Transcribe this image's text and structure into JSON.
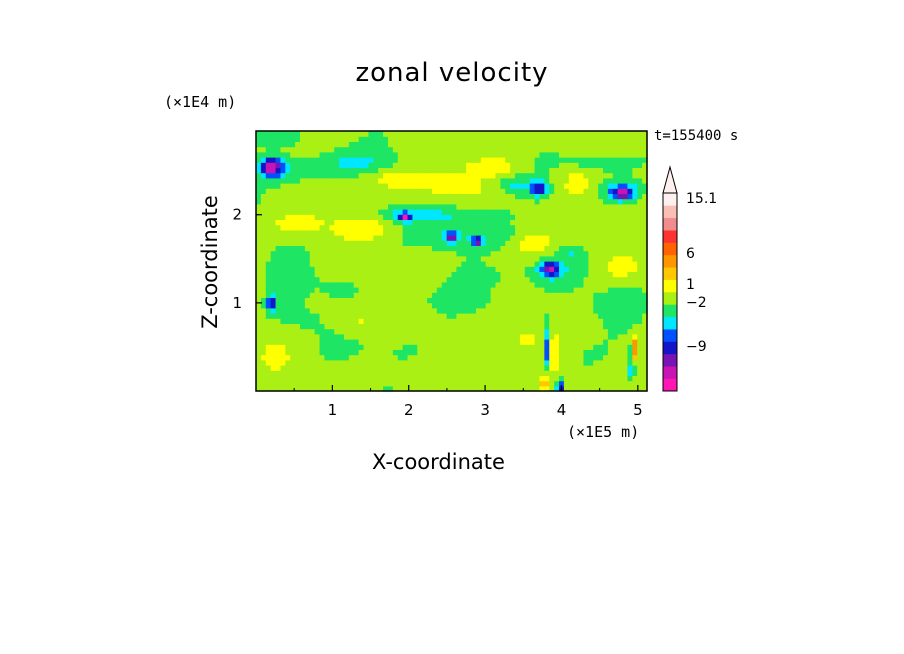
{
  "chart_data": {
    "type": "heatmap",
    "title": "zonal velocity",
    "xlabel": "X-coordinate",
    "ylabel": "Z-coordinate",
    "x_multiplier": "(×1E5 m)",
    "y_multiplier": "(×1E4 m)",
    "time_label": "t=155400 s",
    "xlim": [
      0,
      5.12
    ],
    "ylim": [
      0,
      2.95
    ],
    "x_ticks": [
      "1",
      "2",
      "3",
      "4",
      "5"
    ],
    "y_ticks": [
      "1",
      "2"
    ],
    "colorbar": {
      "labels": [
        "15.1",
        "6",
        "1",
        "−2",
        "−9"
      ],
      "colors": [
        "#ff14b4",
        "#c814b4",
        "#7814b4",
        "#1414c8",
        "#0050ff",
        "#00e6ff",
        "#1ee664",
        "#aaf014",
        "#ffff00",
        "#ffc800",
        "#ff9600",
        "#ff6400",
        "#ff3232",
        "#f08c8c",
        "#fabeb4",
        "#fff0f0"
      ],
      "cmin": -15,
      "cmax": 19
    },
    "blobs": [
      {
        "x": 0.2,
        "y": 2.9,
        "sx": 0.35,
        "sy": 0.12,
        "v": -3
      },
      {
        "x": 0.2,
        "y": 2.55,
        "sx": 0.13,
        "sy": 0.1,
        "v": -12
      },
      {
        "x": 0.45,
        "y": 2.5,
        "sx": 0.45,
        "sy": 0.14,
        "v": -3
      },
      {
        "x": 1.25,
        "y": 2.6,
        "sx": 0.5,
        "sy": 0.15,
        "v": -3
      },
      {
        "x": 1.65,
        "y": 2.43,
        "sx": 0.3,
        "sy": 0.1,
        "v": 2
      },
      {
        "x": 2.3,
        "y": 2.35,
        "sx": 0.55,
        "sy": 0.15,
        "v": 2.5
      },
      {
        "x": 3.1,
        "y": 2.55,
        "sx": 0.35,
        "sy": 0.1,
        "v": 2.5
      },
      {
        "x": 3.4,
        "y": 2.35,
        "sx": 0.25,
        "sy": 0.1,
        "v": -3
      },
      {
        "x": 3.7,
        "y": 2.3,
        "sx": 0.1,
        "sy": 0.08,
        "v": -9
      },
      {
        "x": 4.2,
        "y": 2.35,
        "sx": 0.2,
        "sy": 0.15,
        "v": 2.5
      },
      {
        "x": 4.8,
        "y": 2.3,
        "sx": 0.3,
        "sy": 0.13,
        "v": -3
      },
      {
        "x": 4.8,
        "y": 2.25,
        "sx": 0.15,
        "sy": 0.08,
        "v": -10
      },
      {
        "x": 4.55,
        "y": 2.6,
        "sx": 0.4,
        "sy": 0.1,
        "v": -3
      },
      {
        "x": 2.6,
        "y": 2.0,
        "sx": 0.6,
        "sy": 0.1,
        "v": -3
      },
      {
        "x": 1.9,
        "y": 2.0,
        "sx": 0.3,
        "sy": 0.08,
        "v": -3
      },
      {
        "x": 1.95,
        "y": 1.98,
        "sx": 0.06,
        "sy": 0.05,
        "v": -10
      },
      {
        "x": 0.55,
        "y": 1.9,
        "sx": 0.4,
        "sy": 0.12,
        "v": 2.5
      },
      {
        "x": 1.4,
        "y": 1.85,
        "sx": 0.35,
        "sy": 0.12,
        "v": 2.5
      },
      {
        "x": 2.9,
        "y": 1.75,
        "sx": 0.6,
        "sy": 0.15,
        "v": -3
      },
      {
        "x": 2.55,
        "y": 1.75,
        "sx": 0.08,
        "sy": 0.06,
        "v": -10
      },
      {
        "x": 2.9,
        "y": 1.7,
        "sx": 0.06,
        "sy": 0.05,
        "v": -10
      },
      {
        "x": 3.6,
        "y": 1.68,
        "sx": 0.3,
        "sy": 0.12,
        "v": 2.5
      },
      {
        "x": 4.3,
        "y": 1.7,
        "sx": 0.35,
        "sy": 0.12,
        "v": 2.5
      },
      {
        "x": 4.15,
        "y": 1.6,
        "sx": 0.2,
        "sy": 0.1,
        "v": -3
      },
      {
        "x": 3.85,
        "y": 1.35,
        "sx": 0.35,
        "sy": 0.15,
        "v": -3
      },
      {
        "x": 3.85,
        "y": 1.4,
        "sx": 0.12,
        "sy": 0.08,
        "v": -10
      },
      {
        "x": 4.8,
        "y": 1.4,
        "sx": 0.3,
        "sy": 0.15,
        "v": 2.5
      },
      {
        "x": 0.3,
        "y": 1.3,
        "sx": 0.3,
        "sy": 0.35,
        "v": -1
      },
      {
        "x": 0.55,
        "y": 0.8,
        "sx": 0.4,
        "sy": 0.2,
        "v": -1
      },
      {
        "x": 1.1,
        "y": 1.2,
        "sx": 0.4,
        "sy": 0.2,
        "v": -1
      },
      {
        "x": 2.6,
        "y": 1.05,
        "sx": 0.7,
        "sy": 0.15,
        "v": -1
      },
      {
        "x": 3.1,
        "y": 1.3,
        "sx": 0.4,
        "sy": 0.15,
        "v": -1
      },
      {
        "x": 4.4,
        "y": 1.0,
        "sx": 0.6,
        "sy": 0.25,
        "v": -1
      },
      {
        "x": 1.8,
        "y": 0.5,
        "sx": 0.6,
        "sy": 0.2,
        "v": -1
      },
      {
        "x": 2.6,
        "y": 0.25,
        "sx": 0.4,
        "sy": 0.25,
        "v": -1
      },
      {
        "x": 4.3,
        "y": 0.4,
        "sx": 0.4,
        "sy": 0.25,
        "v": -1
      },
      {
        "x": 3.5,
        "y": 0.6,
        "sx": 0.3,
        "sy": 0.25,
        "v": 2
      },
      {
        "x": 3.2,
        "y": 0.3,
        "sx": 0.25,
        "sy": 0.2,
        "v": 2
      },
      {
        "x": 1.3,
        "y": 0.8,
        "sx": 0.3,
        "sy": 0.15,
        "v": 2
      },
      {
        "x": 0.25,
        "y": 0.4,
        "sx": 0.15,
        "sy": 0.12,
        "v": 2.5
      },
      {
        "x": 0.2,
        "y": 1.0,
        "sx": 0.06,
        "sy": 0.08,
        "v": -10
      },
      {
        "x": 3.82,
        "y": 0.5,
        "sx": 0.04,
        "sy": 0.25,
        "v": -8
      },
      {
        "x": 3.9,
        "y": 0.4,
        "sx": 0.03,
        "sy": 0.2,
        "v": 10
      },
      {
        "x": 3.78,
        "y": 0.1,
        "sx": 0.04,
        "sy": 0.08,
        "v": 10
      },
      {
        "x": 3.98,
        "y": 0.05,
        "sx": 0.04,
        "sy": 0.06,
        "v": -10
      },
      {
        "x": 4.88,
        "y": 0.3,
        "sx": 0.03,
        "sy": 0.2,
        "v": -3
      },
      {
        "x": 4.95,
        "y": 0.5,
        "sx": 0.03,
        "sy": 0.15,
        "v": 8
      },
      {
        "x": 4.93,
        "y": 0.25,
        "sx": 0.03,
        "sy": 0.06,
        "v": -10
      }
    ]
  }
}
